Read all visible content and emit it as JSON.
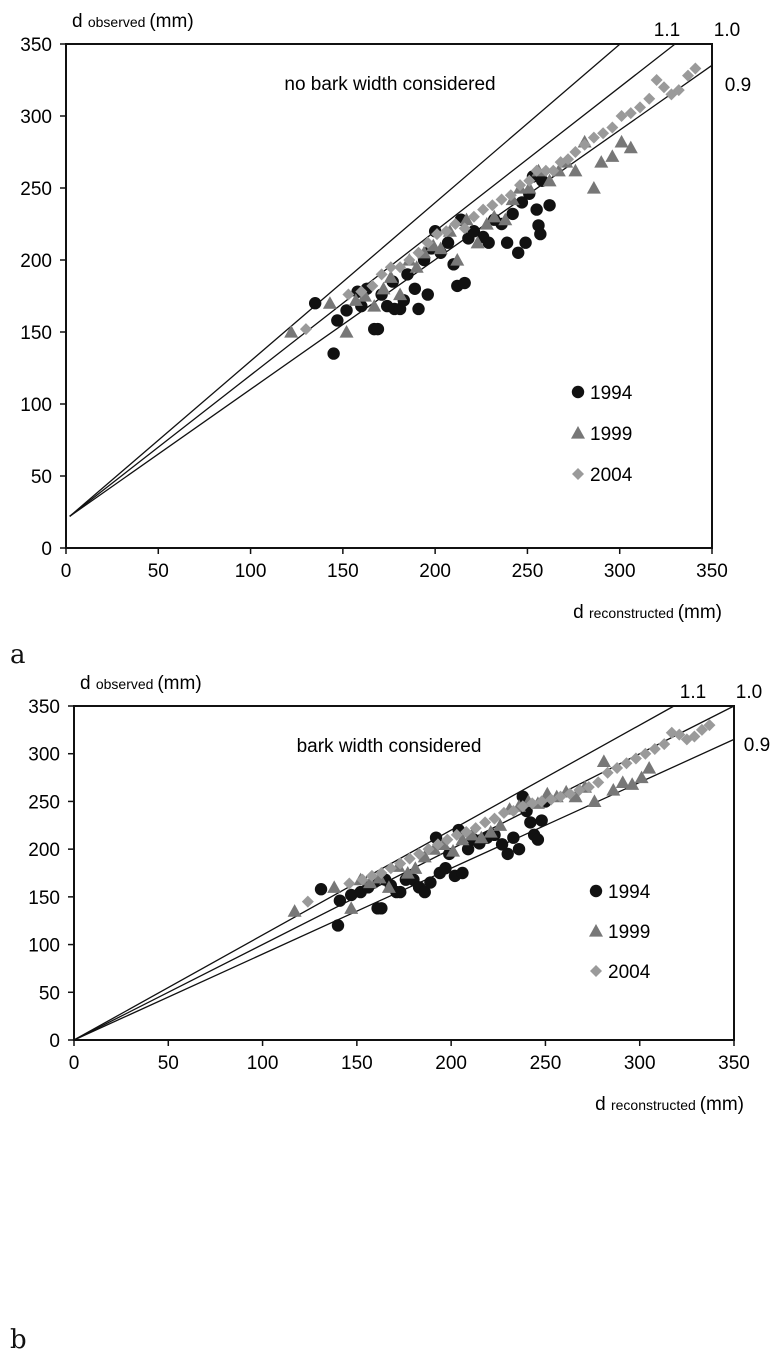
{
  "chart_data": [
    {
      "type": "scatter",
      "panel_label": "a",
      "annotation": "no bark width considered",
      "ylabel_main": "d",
      "ylabel_sub": "observed",
      "ylabel_unit": "(mm)",
      "xlabel_main": "d",
      "xlabel_sub": "reconstructed",
      "xlabel_unit": "(mm)",
      "xlim": [
        0,
        350
      ],
      "ylim": [
        0,
        350
      ],
      "xticks": [
        "0",
        "50",
        "100",
        "150",
        "200",
        "250",
        "300",
        "350"
      ],
      "yticks": [
        "0",
        "50",
        "100",
        "150",
        "200",
        "250",
        "300",
        "350"
      ],
      "grid": false,
      "legend_position": "bottom-right",
      "reference_lines": [
        {
          "label": "1.1",
          "slope": 1.1,
          "intercept": 22
        },
        {
          "label": "1.0",
          "slope": 1.0,
          "intercept": 22
        },
        {
          "label": "0.9",
          "slope": 0.9,
          "intercept": 22
        }
      ],
      "series": [
        {
          "name": "1994",
          "marker": "circle",
          "color": "#111111",
          "points": [
            [
              135,
              170
            ],
            [
              145,
              135
            ],
            [
              147,
              158
            ],
            [
              152,
              165
            ],
            [
              158,
              178
            ],
            [
              160,
              168
            ],
            [
              163,
              180
            ],
            [
              167,
              152
            ],
            [
              169,
              152
            ],
            [
              171,
              176
            ],
            [
              174,
              168
            ],
            [
              177,
              185
            ],
            [
              178,
              166
            ],
            [
              181,
              166
            ],
            [
              183,
              172
            ],
            [
              185,
              190
            ],
            [
              189,
              180
            ],
            [
              191,
              166
            ],
            [
              194,
              200
            ],
            [
              196,
              176
            ],
            [
              198,
              208
            ],
            [
              200,
              220
            ],
            [
              203,
              205
            ],
            [
              207,
              212
            ],
            [
              210,
              197
            ],
            [
              212,
              182
            ],
            [
              214,
              228
            ],
            [
              216,
              184
            ],
            [
              218,
              215
            ],
            [
              221,
              220
            ],
            [
              226,
              216
            ],
            [
              229,
              212
            ],
            [
              232,
              228
            ],
            [
              236,
              225
            ],
            [
              239,
              212
            ],
            [
              242,
              232
            ],
            [
              245,
              205
            ],
            [
              247,
              240
            ],
            [
              249,
              212
            ],
            [
              251,
              246
            ],
            [
              253,
              258
            ],
            [
              255,
              235
            ],
            [
              256,
              224
            ],
            [
              257,
              218
            ],
            [
              258,
              255
            ],
            [
              262,
              238
            ]
          ]
        },
        {
          "name": "1999",
          "marker": "triangle",
          "color": "#777777",
          "points": [
            [
              122,
              150
            ],
            [
              143,
              170
            ],
            [
              152,
              150
            ],
            [
              157,
              172
            ],
            [
              162,
              175
            ],
            [
              167,
              168
            ],
            [
              172,
              180
            ],
            [
              176,
              188
            ],
            [
              181,
              176
            ],
            [
              186,
              200
            ],
            [
              190,
              195
            ],
            [
              194,
              205
            ],
            [
              199,
              210
            ],
            [
              203,
              208
            ],
            [
              208,
              220
            ],
            [
              212,
              200
            ],
            [
              217,
              228
            ],
            [
              223,
              212
            ],
            [
              228,
              225
            ],
            [
              232,
              230
            ],
            [
              238,
              228
            ],
            [
              242,
              242
            ],
            [
              246,
              250
            ],
            [
              251,
              250
            ],
            [
              256,
              262
            ],
            [
              262,
              255
            ],
            [
              267,
              262
            ],
            [
              271,
              268
            ],
            [
              276,
              262
            ],
            [
              281,
              282
            ],
            [
              286,
              250
            ],
            [
              290,
              268
            ],
            [
              296,
              272
            ],
            [
              301,
              282
            ],
            [
              306,
              278
            ]
          ]
        },
        {
          "name": "2004",
          "marker": "diamond",
          "color": "#9a9a9a",
          "points": [
            [
              130,
              152
            ],
            [
              153,
              176
            ],
            [
              160,
              178
            ],
            [
              166,
              182
            ],
            [
              171,
              190
            ],
            [
              176,
              195
            ],
            [
              181,
              195
            ],
            [
              186,
              200
            ],
            [
              191,
              205
            ],
            [
              196,
              212
            ],
            [
              201,
              218
            ],
            [
              206,
              220
            ],
            [
              211,
              225
            ],
            [
              216,
              222
            ],
            [
              221,
              230
            ],
            [
              226,
              235
            ],
            [
              231,
              238
            ],
            [
              236,
              242
            ],
            [
              241,
              245
            ],
            [
              246,
              252
            ],
            [
              251,
              255
            ],
            [
              255,
              262
            ],
            [
              260,
              262
            ],
            [
              264,
              262
            ],
            [
              268,
              268
            ],
            [
              272,
              270
            ],
            [
              276,
              275
            ],
            [
              281,
              280
            ],
            [
              286,
              285
            ],
            [
              291,
              288
            ],
            [
              296,
              292
            ],
            [
              301,
              300
            ],
            [
              306,
              302
            ],
            [
              311,
              306
            ],
            [
              316,
              312
            ],
            [
              320,
              325
            ],
            [
              324,
              320
            ],
            [
              328,
              315
            ],
            [
              332,
              318
            ],
            [
              337,
              328
            ],
            [
              341,
              333
            ]
          ]
        }
      ]
    },
    {
      "type": "scatter",
      "panel_label": "b",
      "annotation": "bark width considered",
      "ylabel_main": "d",
      "ylabel_sub": "observed",
      "ylabel_unit": "(mm)",
      "xlabel_main": "d",
      "xlabel_sub": "reconstructed",
      "xlabel_unit": "(mm)",
      "xlim": [
        0,
        350
      ],
      "ylim": [
        0,
        350
      ],
      "xticks": [
        "0",
        "50",
        "100",
        "150",
        "200",
        "250",
        "300",
        "350"
      ],
      "yticks": [
        "0",
        "50",
        "100",
        "150",
        "200",
        "250",
        "300",
        "350"
      ],
      "grid": false,
      "legend_position": "bottom-right",
      "reference_lines": [
        {
          "label": "1.1",
          "slope": 1.1,
          "intercept": 0
        },
        {
          "label": "1.0",
          "slope": 1.0,
          "intercept": 0
        },
        {
          "label": "0.9",
          "slope": 0.9,
          "intercept": 0
        }
      ],
      "series": [
        {
          "name": "1994",
          "marker": "circle",
          "color": "#111111",
          "points": [
            [
              131,
              158
            ],
            [
              140,
              120
            ],
            [
              141,
              146
            ],
            [
              147,
              152
            ],
            [
              152,
              155
            ],
            [
              156,
              160
            ],
            [
              159,
              165
            ],
            [
              161,
              138
            ],
            [
              163,
              138
            ],
            [
              165,
              168
            ],
            [
              168,
              162
            ],
            [
              171,
              155
            ],
            [
              173,
              155
            ],
            [
              176,
              168
            ],
            [
              180,
              168
            ],
            [
              183,
              160
            ],
            [
              186,
              155
            ],
            [
              189,
              165
            ],
            [
              192,
              212
            ],
            [
              194,
              175
            ],
            [
              197,
              180
            ],
            [
              199,
              195
            ],
            [
              202,
              172
            ],
            [
              204,
              220
            ],
            [
              206,
              175
            ],
            [
              209,
              200
            ],
            [
              212,
              210
            ],
            [
              215,
              206
            ],
            [
              219,
              212
            ],
            [
              223,
              215
            ],
            [
              227,
              205
            ],
            [
              230,
              195
            ],
            [
              233,
              212
            ],
            [
              236,
              200
            ],
            [
              238,
              255
            ],
            [
              240,
              240
            ],
            [
              242,
              228
            ],
            [
              244,
              215
            ],
            [
              246,
              210
            ],
            [
              248,
              230
            ],
            [
              250,
              250
            ]
          ]
        },
        {
          "name": "1999",
          "marker": "triangle",
          "color": "#777777",
          "points": [
            [
              117,
              135
            ],
            [
              138,
              160
            ],
            [
              147,
              138
            ],
            [
              152,
              168
            ],
            [
              157,
              165
            ],
            [
              162,
              170
            ],
            [
              167,
              160
            ],
            [
              172,
              182
            ],
            [
              177,
              175
            ],
            [
              181,
              180
            ],
            [
              186,
              192
            ],
            [
              191,
              200
            ],
            [
              196,
              205
            ],
            [
              201,
              198
            ],
            [
              206,
              210
            ],
            [
              211,
              215
            ],
            [
              216,
              212
            ],
            [
              221,
              218
            ],
            [
              226,
              225
            ],
            [
              231,
              242
            ],
            [
              236,
              245
            ],
            [
              241,
              250
            ],
            [
              246,
              248
            ],
            [
              251,
              258
            ],
            [
              256,
              255
            ],
            [
              261,
              260
            ],
            [
              266,
              255
            ],
            [
              271,
              265
            ],
            [
              276,
              250
            ],
            [
              281,
              292
            ],
            [
              286,
              262
            ],
            [
              291,
              270
            ],
            [
              296,
              268
            ],
            [
              301,
              275
            ],
            [
              305,
              285
            ]
          ]
        },
        {
          "name": "2004",
          "marker": "diamond",
          "color": "#9a9a9a",
          "points": [
            [
              124,
              145
            ],
            [
              146,
              164
            ],
            [
              153,
              168
            ],
            [
              158,
              172
            ],
            [
              163,
              175
            ],
            [
              168,
              180
            ],
            [
              173,
              185
            ],
            [
              178,
              190
            ],
            [
              183,
              195
            ],
            [
              188,
              200
            ],
            [
              193,
              205
            ],
            [
              198,
              210
            ],
            [
              203,
              215
            ],
            [
              208,
              218
            ],
            [
              213,
              222
            ],
            [
              218,
              228
            ],
            [
              223,
              232
            ],
            [
              228,
              238
            ],
            [
              233,
              240
            ],
            [
              238,
              245
            ],
            [
              243,
              248
            ],
            [
              248,
              250
            ],
            [
              253,
              252
            ],
            [
              258,
              255
            ],
            [
              263,
              258
            ],
            [
              268,
              262
            ],
            [
              273,
              265
            ],
            [
              278,
              270
            ],
            [
              283,
              280
            ],
            [
              288,
              285
            ],
            [
              293,
              290
            ],
            [
              298,
              295
            ],
            [
              303,
              300
            ],
            [
              308,
              305
            ],
            [
              313,
              310
            ],
            [
              317,
              322
            ],
            [
              321,
              320
            ],
            [
              325,
              315
            ],
            [
              329,
              318
            ],
            [
              333,
              325
            ],
            [
              337,
              330
            ]
          ]
        }
      ]
    }
  ]
}
